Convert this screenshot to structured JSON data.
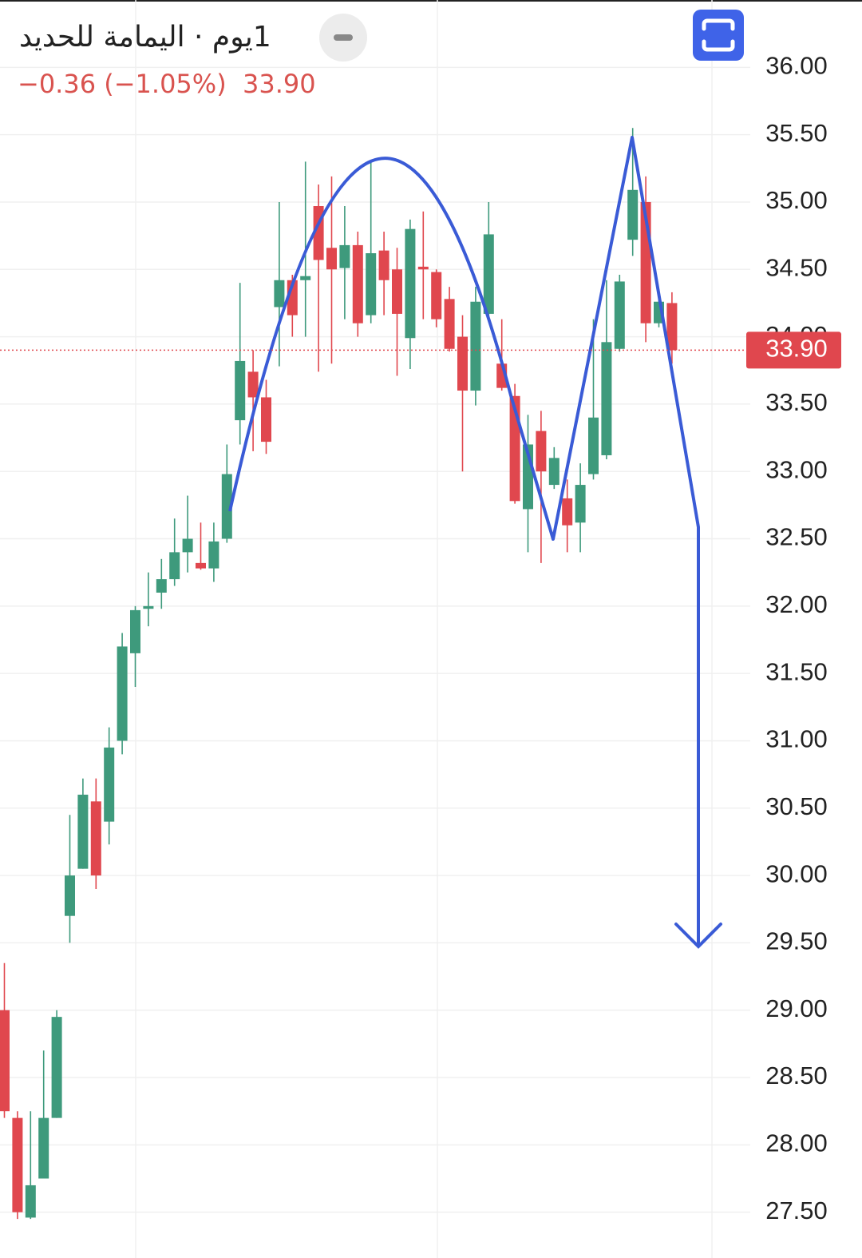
{
  "chart_data": {
    "type": "candlestick",
    "title": "1يوم · اليمامة للحديد",
    "change": "−0.36 (−1.05%)",
    "last_price": {
      "value": 33.9,
      "label": "33.90"
    },
    "up_color": "#3e9a7c",
    "down_color": "#e0474e",
    "open": [
      29.0,
      28.2,
      27.46,
      27.75,
      28.2,
      29.7,
      30.05,
      30.55,
      30.4,
      31.0,
      31.65,
      31.98,
      32.1,
      32.2,
      32.4,
      32.32,
      32.28,
      32.5,
      33.38,
      33.74,
      33.55,
      34.22,
      34.42,
      34.42,
      34.97,
      34.66,
      34.51,
      34.68,
      34.16,
      34.64,
      34.5,
      33.99,
      34.52,
      34.48,
      34.28,
      34.0,
      33.6,
      34.17,
      33.8,
      33.56,
      32.72,
      33.3,
      32.9,
      32.8,
      32.62,
      32.98,
      33.12,
      33.91,
      34.72,
      35.0,
      34.1,
      34.25
    ],
    "high": [
      29.35,
      28.25,
      28.25,
      28.7,
      29.0,
      30.45,
      30.72,
      30.72,
      31.1,
      31.8,
      32.0,
      32.25,
      32.35,
      32.65,
      32.82,
      32.62,
      32.62,
      33.2,
      34.4,
      33.9,
      33.68,
      35.0,
      34.46,
      35.3,
      35.13,
      35.19,
      34.97,
      34.78,
      35.31,
      34.78,
      34.66,
      34.87,
      34.93,
      34.5,
      34.37,
      34.16,
      34.37,
      35.0,
      34.13,
      33.65,
      33.42,
      33.45,
      33.18,
      32.94,
      33.06,
      34.13,
      34.42,
      34.46,
      35.55,
      35.19,
      34.35,
      34.33
    ],
    "low": [
      28.2,
      27.45,
      27.45,
      27.75,
      28.2,
      29.5,
      30.05,
      29.9,
      30.23,
      30.9,
      31.4,
      31.85,
      31.98,
      32.15,
      32.25,
      32.27,
      32.18,
      32.47,
      33.2,
      33.15,
      33.13,
      33.78,
      34.0,
      34.0,
      33.74,
      33.8,
      34.13,
      34.0,
      34.1,
      34.16,
      33.71,
      33.76,
      34.13,
      34.07,
      33.89,
      33.0,
      33.49,
      34.13,
      33.6,
      32.76,
      32.4,
      32.32,
      32.87,
      32.4,
      32.4,
      32.94,
      33.09,
      33.89,
      34.6,
      33.96,
      34.07,
      33.8
    ],
    "close": [
      28.25,
      27.5,
      27.7,
      28.2,
      28.95,
      30.0,
      30.6,
      30.0,
      30.95,
      31.7,
      31.97,
      32.0,
      32.2,
      32.4,
      32.5,
      32.28,
      32.48,
      32.98,
      33.82,
      33.55,
      33.22,
      34.42,
      34.16,
      34.45,
      34.57,
      34.5,
      34.68,
      34.1,
      34.62,
      34.42,
      34.17,
      34.8,
      34.5,
      34.13,
      33.91,
      33.6,
      34.26,
      34.76,
      33.62,
      32.78,
      33.2,
      33.0,
      33.1,
      32.6,
      32.9,
      33.4,
      33.96,
      34.41,
      35.09,
      34.1,
      34.26,
      33.9
    ],
    "ylim": [
      27.16,
      36.5
    ],
    "yticks": [
      {
        "value": 27.5,
        "label": "27.50"
      },
      {
        "value": 28,
        "label": "28.00"
      },
      {
        "value": 28.5,
        "label": "28.50"
      },
      {
        "value": 29,
        "label": "29.00"
      },
      {
        "value": 29.5,
        "label": "29.50"
      },
      {
        "value": 30,
        "label": "30.00"
      },
      {
        "value": 30.5,
        "label": "30.50"
      },
      {
        "value": 31,
        "label": "31.00"
      },
      {
        "value": 31.5,
        "label": "31.50"
      },
      {
        "value": 32,
        "label": "32.00"
      },
      {
        "value": 32.5,
        "label": "32.50"
      },
      {
        "value": 33,
        "label": "33.00"
      },
      {
        "value": 33.5,
        "label": "33.50"
      },
      {
        "value": 34,
        "label": "34.00"
      },
      {
        "value": 34.5,
        "label": "34.50"
      },
      {
        "value": 35,
        "label": "35.00"
      },
      {
        "value": 35.5,
        "label": "35.50"
      },
      {
        "value": 36,
        "label": "36.00"
      }
    ],
    "grid": true
  }
}
